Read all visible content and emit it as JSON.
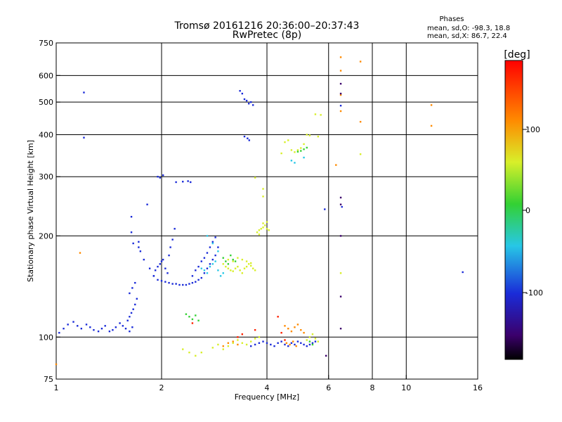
{
  "header": {
    "title": "Tromsø 20161216 20:36:00–20:37:43",
    "subtitle": "RwPretec (8p)",
    "phases_title": "Phases",
    "phases_line1": "mean, sd,O: -98.3, 18.8",
    "phases_line2": "mean, sd,X:  86.7, 22.4"
  },
  "colorbar": {
    "label": "[deg]",
    "ticks": [
      "100",
      "0",
      "-100"
    ],
    "range": [
      -180,
      180
    ]
  },
  "colors": {
    "grid": "#000000",
    "blue": "#1a2bd8",
    "cyan": "#27c7e6",
    "green": "#33d133",
    "yellow": "#d8ef2a",
    "orange": "#ff8a00",
    "red": "#ff2000",
    "dark": "#3b006b"
  },
  "chart_data": {
    "type": "scatter",
    "title": "Tromsø 20161216 20:36:00–20:37:43",
    "subtitle": "RwPretec (8p)",
    "xlabel": "Frequency [MHz]",
    "ylabel": "Stationary phase Virtual Height [km]",
    "xscale": "log",
    "yscale": "log",
    "xlim": [
      1,
      16
    ],
    "ylim": [
      75,
      750
    ],
    "xticks": [
      "1",
      "2",
      "4",
      "6",
      "8",
      "10",
      "16"
    ],
    "yticks": [
      "75",
      "100",
      "200",
      "300",
      "400",
      "500",
      "600",
      "750"
    ],
    "grid_x": [
      2,
      4,
      6,
      8,
      10
    ],
    "grid_y": [
      100,
      200,
      300,
      400,
      500,
      600
    ],
    "series": [
      {
        "color": "blue",
        "x": [
          1.02,
          1.05,
          1.08,
          1.12,
          1.15,
          1.18,
          1.22,
          1.25,
          1.28,
          1.32,
          1.35,
          1.38,
          1.42,
          1.45,
          1.48,
          1.52,
          1.55,
          1.58,
          1.62,
          1.65
        ],
        "y": [
          103,
          106,
          109,
          111,
          108,
          106,
          109,
          107,
          105,
          104,
          106,
          108,
          104,
          105,
          107,
          110,
          108,
          106,
          104,
          107
        ]
      },
      {
        "color": "blue",
        "x": [
          1.6,
          1.62,
          1.64,
          1.66,
          1.68,
          1.7,
          1.62,
          1.65,
          1.68
        ],
        "y": [
          112,
          115,
          118,
          121,
          125,
          130,
          135,
          140,
          145
        ]
      },
      {
        "color": "blue",
        "x": [
          1.64,
          1.66,
          1.72,
          1.74,
          1.78,
          1.85,
          1.9,
          1.95,
          2.0,
          2.05,
          2.1,
          2.15,
          2.2,
          2.25,
          2.3,
          2.35,
          2.4,
          2.45,
          2.5,
          2.55,
          2.6,
          2.65,
          2.7,
          2.75,
          2.8,
          2.85
        ],
        "y": [
          205,
          190,
          185,
          180,
          170,
          160,
          152,
          148,
          147,
          146,
          145,
          144,
          144,
          143,
          143,
          143,
          144,
          145,
          146,
          148,
          150,
          155,
          160,
          165,
          170,
          175
        ]
      },
      {
        "color": "blue",
        "x": [
          1.9,
          1.92,
          1.95,
          1.98,
          2.0,
          2.02,
          2.05,
          2.08,
          2.1,
          2.12,
          2.15,
          2.18
        ],
        "y": [
          152,
          158,
          162,
          165,
          168,
          170,
          160,
          155,
          175,
          185,
          195,
          210
        ]
      },
      {
        "color": "blue",
        "x": [
          2.45,
          2.5,
          2.55,
          2.6,
          2.65,
          2.7,
          2.75,
          2.8,
          2.85,
          2.9
        ],
        "y": [
          152,
          158,
          162,
          168,
          172,
          178,
          185,
          192,
          198,
          185
        ]
      },
      {
        "color": "blue",
        "x": [
          1.95,
          1.98,
          2.02,
          2.2,
          2.3,
          2.38,
          2.42
        ],
        "y": [
          300,
          298,
          303,
          289,
          290,
          291,
          289
        ]
      },
      {
        "color": "blue",
        "x": [
          1.2,
          1.2,
          1.64,
          1.72,
          1.82
        ],
        "y": [
          534,
          392,
          228,
          192,
          248
        ]
      },
      {
        "color": "blue",
        "x": [
          3.35,
          3.4,
          3.45,
          3.5,
          3.55,
          3.6,
          3.65,
          3.52,
          3.56,
          3.45
        ],
        "y": [
          540,
          530,
          510,
          505,
          495,
          500,
          490,
          390,
          385,
          395
        ]
      },
      {
        "color": "cyan",
        "x": [
          2.6,
          2.65,
          2.7,
          2.75,
          2.8,
          2.85,
          2.9,
          2.95,
          3.0,
          2.7,
          2.8,
          2.9
        ],
        "y": [
          160,
          158,
          155,
          162,
          165,
          168,
          158,
          152,
          155,
          200,
          190,
          180
        ]
      },
      {
        "color": "yellow",
        "x": [
          3.0,
          3.05,
          3.1,
          3.15,
          3.2,
          3.25,
          3.3,
          3.35,
          3.4,
          3.45,
          3.5,
          3.55,
          3.6,
          3.65,
          3.7,
          3.1,
          3.2,
          3.3,
          3.4,
          3.5,
          3.6
        ],
        "y": [
          165,
          162,
          160,
          158,
          157,
          160,
          162,
          158,
          155,
          160,
          162,
          165,
          163,
          160,
          158,
          170,
          168,
          172,
          170,
          168,
          166
        ]
      },
      {
        "color": "green",
        "x": [
          3.0,
          3.05,
          3.1,
          3.15,
          3.2,
          3.25
        ],
        "y": [
          172,
          168,
          165,
          175,
          170,
          168
        ]
      },
      {
        "color": "yellow",
        "x": [
          3.75,
          3.8,
          3.85,
          3.9,
          3.95,
          4.0,
          4.05,
          3.8,
          3.9,
          4.0
        ],
        "y": [
          205,
          208,
          210,
          212,
          215,
          210,
          208,
          202,
          218,
          220
        ]
      },
      {
        "color": "yellow",
        "x": [
          4.5,
          4.6,
          4.7,
          4.8,
          4.9,
          5.0,
          5.1,
          5.2,
          5.3,
          5.5,
          5.6,
          4.4
        ],
        "y": [
          380,
          385,
          360,
          355,
          360,
          365,
          375,
          400,
          398,
          460,
          395,
          352
        ]
      },
      {
        "color": "green",
        "x": [
          4.9,
          5.0,
          5.1,
          5.2
        ],
        "y": [
          356,
          358,
          362,
          366
        ]
      },
      {
        "color": "cyan",
        "x": [
          4.7,
          5.1,
          4.8
        ],
        "y": [
          335,
          342,
          330
        ]
      },
      {
        "color": "blue",
        "x": [
          3.6,
          3.7,
          3.8,
          3.9,
          4.0,
          4.1,
          4.2,
          4.3,
          4.4,
          4.5,
          4.6,
          4.7,
          4.8,
          4.9,
          5.0,
          5.1,
          5.2,
          5.3,
          5.4,
          5.5
        ],
        "y": [
          94,
          95,
          96,
          97,
          96,
          95,
          94,
          96,
          97,
          95,
          94,
          96,
          95,
          97,
          96,
          95,
          94,
          95,
          96,
          97
        ]
      },
      {
        "color": "orange",
        "x": [
          3.0,
          3.1,
          3.2,
          3.3,
          4.5,
          4.6,
          4.7,
          4.8,
          4.9,
          5.0,
          5.1,
          4.55,
          4.65,
          4.75,
          4.85
        ],
        "y": [
          94,
          96,
          97,
          95,
          108,
          106,
          104,
          107,
          109,
          105,
          103,
          96,
          95,
          97,
          94
        ]
      },
      {
        "color": "yellow",
        "x": [
          2.3,
          2.4,
          2.5,
          2.6,
          2.8,
          2.9,
          3.0,
          3.1,
          3.2,
          3.3,
          3.4,
          3.5,
          3.6,
          3.7,
          3.8,
          5.2,
          5.3,
          5.4,
          5.5,
          5.6
        ],
        "y": [
          92,
          90,
          88,
          90,
          93,
          95,
          92,
          94,
          96,
          98,
          96,
          95,
          97,
          99,
          100,
          98,
          100,
          102,
          99,
          97
        ]
      },
      {
        "color": "green",
        "x": [
          2.35,
          2.4,
          2.45,
          2.5,
          2.55,
          5.3,
          5.4
        ],
        "y": [
          117,
          115,
          113,
          116,
          112,
          97,
          95
        ]
      },
      {
        "color": "red",
        "x": [
          2.45,
          3.3,
          3.4,
          3.7,
          4.3,
          4.4,
          4.5
        ],
        "y": [
          110,
          100,
          102,
          105,
          115,
          103,
          98
        ]
      },
      {
        "color": "orange",
        "x": [
          6.5,
          6.5,
          6.5,
          6.5,
          7.4,
          7.4,
          11.8,
          11.8,
          1.0,
          1.17,
          6.3
        ],
        "y": [
          680,
          620,
          525,
          470,
          660,
          437,
          490,
          425,
          83,
          178,
          325
        ]
      },
      {
        "color": "dark",
        "x": [
          6.5,
          6.5,
          6.5,
          6.5,
          6.5,
          6.5,
          6.5,
          5.9
        ],
        "y": [
          567,
          530,
          260,
          248,
          200,
          132,
          106,
          88
        ]
      },
      {
        "color": "blue",
        "x": [
          6.5,
          6.55,
          5.85,
          14.5
        ],
        "y": [
          488,
          244,
          240,
          156
        ]
      },
      {
        "color": "yellow",
        "x": [
          7.4,
          6.5,
          3.9,
          5.7,
          3.9,
          3.7
        ],
        "y": [
          350,
          155,
          276,
          458,
          262,
          298
        ]
      }
    ]
  }
}
